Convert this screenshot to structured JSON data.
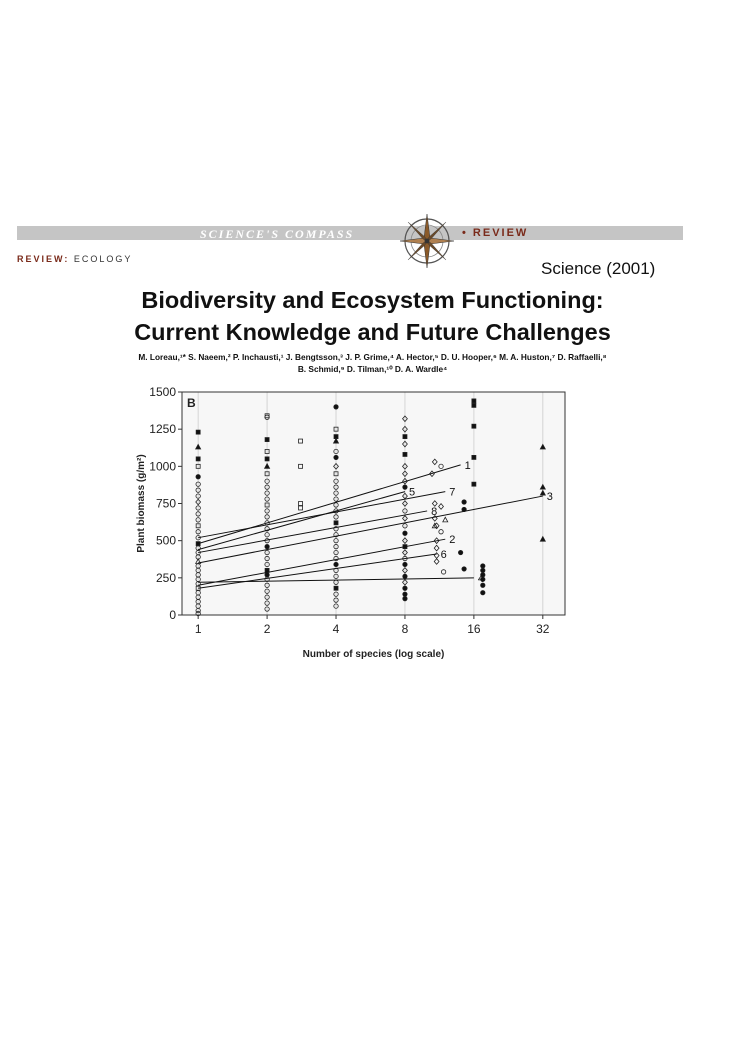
{
  "banner": {
    "left_text": "SCIENCE'S COMPASS",
    "right_text": "• REVIEW"
  },
  "review_tag": {
    "prefix": "REVIEW:",
    "topic": "ECOLOGY"
  },
  "journal_label": "Science (2001)",
  "title": {
    "line1": "Biodiversity and Ecosystem Functioning:",
    "line2": "Current Knowledge and Future Challenges"
  },
  "authors": {
    "line1": "M. Loreau,¹* S. Naeem,² P. Inchausti,¹ J. Bengtsson,³ J. P. Grime,⁴ A. Hector,⁵ D. U. Hooper,⁶ M. A. Huston,⁷ D. Raffaelli,⁸",
    "line2": "B. Schmid,⁹ D. Tilman,¹⁰ D. A. Wardle⁴"
  },
  "colors": {
    "banner_gray": "#c5c5c5",
    "accent_brown": "#7a2a1a"
  },
  "chart_data": {
    "type": "scatter",
    "panel_label": "B",
    "xlabel": "Number of species (log scale)",
    "ylabel": "Plant biomass (g/m²)",
    "x_scale": "log2",
    "xlim": [
      0.85,
      40
    ],
    "ylim": [
      0,
      1500
    ],
    "x_ticks": [
      1,
      2,
      4,
      8,
      16,
      32
    ],
    "y_ticks": [
      0,
      250,
      500,
      750,
      1000,
      1250,
      1500
    ],
    "grid": "vertical",
    "regression_lines": [
      {
        "label": "1",
        "x0": 1,
        "y0": 480,
        "x1": 14,
        "y1": 1010
      },
      {
        "label": "2",
        "x0": 1,
        "y0": 200,
        "x1": 12,
        "y1": 510
      },
      {
        "label": "3",
        "x0": 1,
        "y0": 350,
        "x1": 32,
        "y1": 800
      },
      {
        "label": "4",
        "x0": 1,
        "y0": 220,
        "x1": 16,
        "y1": 250
      },
      {
        "label": "5",
        "x0": 1,
        "y0": 440,
        "x1": 8,
        "y1": 830
      },
      {
        "label": "6",
        "x0": 1,
        "y0": 180,
        "x1": 11,
        "y1": 410
      },
      {
        "label": "7",
        "x0": 1,
        "y0": 520,
        "x1": 12,
        "y1": 830
      },
      {
        "label": "8",
        "x0": 1,
        "y0": 420,
        "x1": 10,
        "y1": 700
      }
    ],
    "points": [
      {
        "x": 1,
        "y": 1230,
        "m": "fs"
      },
      {
        "x": 1,
        "y": 1130,
        "m": "ft"
      },
      {
        "x": 1,
        "y": 1050,
        "m": "fs"
      },
      {
        "x": 1,
        "y": 1000,
        "m": "os"
      },
      {
        "x": 1,
        "y": 930,
        "m": "fc"
      },
      {
        "x": 1,
        "y": 880,
        "m": "oc"
      },
      {
        "x": 1,
        "y": 840,
        "m": "oc"
      },
      {
        "x": 1,
        "y": 800,
        "m": "oc"
      },
      {
        "x": 1,
        "y": 760,
        "m": "od"
      },
      {
        "x": 1,
        "y": 720,
        "m": "oc"
      },
      {
        "x": 1,
        "y": 680,
        "m": "oc"
      },
      {
        "x": 1,
        "y": 640,
        "m": "oc"
      },
      {
        "x": 1,
        "y": 600,
        "m": "os"
      },
      {
        "x": 1,
        "y": 560,
        "m": "oc"
      },
      {
        "x": 1,
        "y": 520,
        "m": "oc"
      },
      {
        "x": 1,
        "y": 480,
        "m": "fs"
      },
      {
        "x": 1,
        "y": 450,
        "m": "oc"
      },
      {
        "x": 1,
        "y": 420,
        "m": "oc"
      },
      {
        "x": 1,
        "y": 390,
        "m": "oc"
      },
      {
        "x": 1,
        "y": 360,
        "m": "ot"
      },
      {
        "x": 1,
        "y": 330,
        "m": "oc"
      },
      {
        "x": 1,
        "y": 300,
        "m": "oc"
      },
      {
        "x": 1,
        "y": 270,
        "m": "oc"
      },
      {
        "x": 1,
        "y": 240,
        "m": "oc"
      },
      {
        "x": 1,
        "y": 210,
        "m": "oc"
      },
      {
        "x": 1,
        "y": 180,
        "m": "os"
      },
      {
        "x": 1,
        "y": 150,
        "m": "oc"
      },
      {
        "x": 1,
        "y": 120,
        "m": "oc"
      },
      {
        "x": 1,
        "y": 90,
        "m": "oc"
      },
      {
        "x": 1,
        "y": 60,
        "m": "oc"
      },
      {
        "x": 1,
        "y": 30,
        "m": "oc"
      },
      {
        "x": 1,
        "y": 10,
        "m": "oc"
      },
      {
        "x": 2,
        "y": 1340,
        "m": "os"
      },
      {
        "x": 2,
        "y": 1330,
        "m": "oc"
      },
      {
        "x": 2,
        "y": 1180,
        "m": "fs"
      },
      {
        "x": 2,
        "y": 1100,
        "m": "os"
      },
      {
        "x": 2,
        "y": 1050,
        "m": "fs"
      },
      {
        "x": 2,
        "y": 1000,
        "m": "ft"
      },
      {
        "x": 2,
        "y": 950,
        "m": "os"
      },
      {
        "x": 2,
        "y": 900,
        "m": "oc"
      },
      {
        "x": 2,
        "y": 860,
        "m": "oc"
      },
      {
        "x": 2,
        "y": 820,
        "m": "oc"
      },
      {
        "x": 2,
        "y": 780,
        "m": "oc"
      },
      {
        "x": 2,
        "y": 740,
        "m": "os"
      },
      {
        "x": 2,
        "y": 700,
        "m": "oc"
      },
      {
        "x": 2,
        "y": 660,
        "m": "oc"
      },
      {
        "x": 2,
        "y": 620,
        "m": "oc"
      },
      {
        "x": 2,
        "y": 580,
        "m": "oc"
      },
      {
        "x": 2,
        "y": 540,
        "m": "oc"
      },
      {
        "x": 2,
        "y": 500,
        "m": "oc"
      },
      {
        "x": 2,
        "y": 460,
        "m": "fc"
      },
      {
        "x": 2,
        "y": 420,
        "m": "oc"
      },
      {
        "x": 2,
        "y": 380,
        "m": "oc"
      },
      {
        "x": 2,
        "y": 340,
        "m": "oc"
      },
      {
        "x": 2,
        "y": 300,
        "m": "fs"
      },
      {
        "x": 2,
        "y": 270,
        "m": "fc"
      },
      {
        "x": 2,
        "y": 240,
        "m": "oc"
      },
      {
        "x": 2,
        "y": 200,
        "m": "oc"
      },
      {
        "x": 2,
        "y": 160,
        "m": "oc"
      },
      {
        "x": 2,
        "y": 120,
        "m": "oc"
      },
      {
        "x": 2,
        "y": 80,
        "m": "oc"
      },
      {
        "x": 2,
        "y": 40,
        "m": "oc"
      },
      {
        "x": 2.8,
        "y": 1170,
        "m": "os"
      },
      {
        "x": 2.8,
        "y": 1000,
        "m": "os"
      },
      {
        "x": 2.8,
        "y": 750,
        "m": "os"
      },
      {
        "x": 2.8,
        "y": 720,
        "m": "os"
      },
      {
        "x": 4,
        "y": 1400,
        "m": "fc"
      },
      {
        "x": 4,
        "y": 1250,
        "m": "os"
      },
      {
        "x": 4,
        "y": 1200,
        "m": "fs"
      },
      {
        "x": 4,
        "y": 1170,
        "m": "ft"
      },
      {
        "x": 4,
        "y": 1100,
        "m": "oc"
      },
      {
        "x": 4,
        "y": 1060,
        "m": "fc"
      },
      {
        "x": 4,
        "y": 1000,
        "m": "od"
      },
      {
        "x": 4,
        "y": 950,
        "m": "os"
      },
      {
        "x": 4,
        "y": 900,
        "m": "oc"
      },
      {
        "x": 4,
        "y": 860,
        "m": "oc"
      },
      {
        "x": 4,
        "y": 820,
        "m": "oc"
      },
      {
        "x": 4,
        "y": 780,
        "m": "oc"
      },
      {
        "x": 4,
        "y": 740,
        "m": "oc"
      },
      {
        "x": 4,
        "y": 700,
        "m": "oc"
      },
      {
        "x": 4,
        "y": 660,
        "m": "oc"
      },
      {
        "x": 4,
        "y": 620,
        "m": "fs"
      },
      {
        "x": 4,
        "y": 580,
        "m": "oc"
      },
      {
        "x": 4,
        "y": 540,
        "m": "oc"
      },
      {
        "x": 4,
        "y": 500,
        "m": "oc"
      },
      {
        "x": 4,
        "y": 460,
        "m": "oc"
      },
      {
        "x": 4,
        "y": 420,
        "m": "oc"
      },
      {
        "x": 4,
        "y": 380,
        "m": "oc"
      },
      {
        "x": 4,
        "y": 340,
        "m": "fc"
      },
      {
        "x": 4,
        "y": 300,
        "m": "oc"
      },
      {
        "x": 4,
        "y": 260,
        "m": "oc"
      },
      {
        "x": 4,
        "y": 220,
        "m": "oc"
      },
      {
        "x": 4,
        "y": 180,
        "m": "fs"
      },
      {
        "x": 4,
        "y": 140,
        "m": "oc"
      },
      {
        "x": 4,
        "y": 100,
        "m": "oc"
      },
      {
        "x": 4,
        "y": 60,
        "m": "oc"
      },
      {
        "x": 8,
        "y": 1320,
        "m": "od"
      },
      {
        "x": 8,
        "y": 1250,
        "m": "od"
      },
      {
        "x": 8,
        "y": 1200,
        "m": "fs"
      },
      {
        "x": 8,
        "y": 1150,
        "m": "od"
      },
      {
        "x": 8,
        "y": 1080,
        "m": "fs"
      },
      {
        "x": 8,
        "y": 1000,
        "m": "od"
      },
      {
        "x": 8,
        "y": 950,
        "m": "od"
      },
      {
        "x": 8,
        "y": 900,
        "m": "od"
      },
      {
        "x": 8,
        "y": 860,
        "m": "fc"
      },
      {
        "x": 8,
        "y": 800,
        "m": "od"
      },
      {
        "x": 8,
        "y": 750,
        "m": "od"
      },
      {
        "x": 8,
        "y": 700,
        "m": "oc"
      },
      {
        "x": 8,
        "y": 650,
        "m": "od"
      },
      {
        "x": 8,
        "y": 600,
        "m": "oc"
      },
      {
        "x": 8,
        "y": 550,
        "m": "fc"
      },
      {
        "x": 8,
        "y": 500,
        "m": "od"
      },
      {
        "x": 8,
        "y": 460,
        "m": "fs"
      },
      {
        "x": 8,
        "y": 420,
        "m": "od"
      },
      {
        "x": 8,
        "y": 380,
        "m": "oc"
      },
      {
        "x": 8,
        "y": 340,
        "m": "fc"
      },
      {
        "x": 8,
        "y": 300,
        "m": "od"
      },
      {
        "x": 8,
        "y": 260,
        "m": "fc"
      },
      {
        "x": 8,
        "y": 220,
        "m": "od"
      },
      {
        "x": 8,
        "y": 180,
        "m": "fc"
      },
      {
        "x": 8,
        "y": 140,
        "m": "fc"
      },
      {
        "x": 8,
        "y": 110,
        "m": "fc"
      },
      {
        "x": 10.8,
        "y": 1030,
        "m": "od"
      },
      {
        "x": 11.5,
        "y": 1000,
        "m": "oc"
      },
      {
        "x": 10.5,
        "y": 950,
        "m": "od"
      },
      {
        "x": 10.8,
        "y": 750,
        "m": "od"
      },
      {
        "x": 11.5,
        "y": 730,
        "m": "od"
      },
      {
        "x": 10.8,
        "y": 650,
        "m": "od"
      },
      {
        "x": 11,
        "y": 600,
        "m": "od"
      },
      {
        "x": 11.5,
        "y": 560,
        "m": "oc"
      },
      {
        "x": 11,
        "y": 500,
        "m": "od"
      },
      {
        "x": 11,
        "y": 450,
        "m": "od"
      },
      {
        "x": 11,
        "y": 400,
        "m": "od"
      },
      {
        "x": 11,
        "y": 360,
        "m": "od"
      },
      {
        "x": 11.8,
        "y": 290,
        "m": "oc"
      },
      {
        "x": 10.8,
        "y": 600,
        "m": "ot"
      },
      {
        "x": 12,
        "y": 640,
        "m": "ot"
      },
      {
        "x": 16,
        "y": 1440,
        "m": "fs"
      },
      {
        "x": 16,
        "y": 1410,
        "m": "fs"
      },
      {
        "x": 16,
        "y": 1270,
        "m": "fs"
      },
      {
        "x": 16,
        "y": 1060,
        "m": "fs"
      },
      {
        "x": 16,
        "y": 880,
        "m": "fs"
      },
      {
        "x": 14.5,
        "y": 760,
        "m": "fc"
      },
      {
        "x": 14.5,
        "y": 710,
        "m": "fc"
      },
      {
        "x": 14,
        "y": 420,
        "m": "fc"
      },
      {
        "x": 14.5,
        "y": 310,
        "m": "fc"
      },
      {
        "x": 17.5,
        "y": 330,
        "m": "fc"
      },
      {
        "x": 17.5,
        "y": 300,
        "m": "fc"
      },
      {
        "x": 17.5,
        "y": 270,
        "m": "fc"
      },
      {
        "x": 17.5,
        "y": 240,
        "m": "fc"
      },
      {
        "x": 17.5,
        "y": 200,
        "m": "fc"
      },
      {
        "x": 17.5,
        "y": 150,
        "m": "fc"
      },
      {
        "x": 32,
        "y": 1130,
        "m": "ft"
      },
      {
        "x": 32,
        "y": 860,
        "m": "ft"
      },
      {
        "x": 32,
        "y": 820,
        "m": "ft"
      },
      {
        "x": 32,
        "y": 510,
        "m": "ft"
      }
    ]
  }
}
